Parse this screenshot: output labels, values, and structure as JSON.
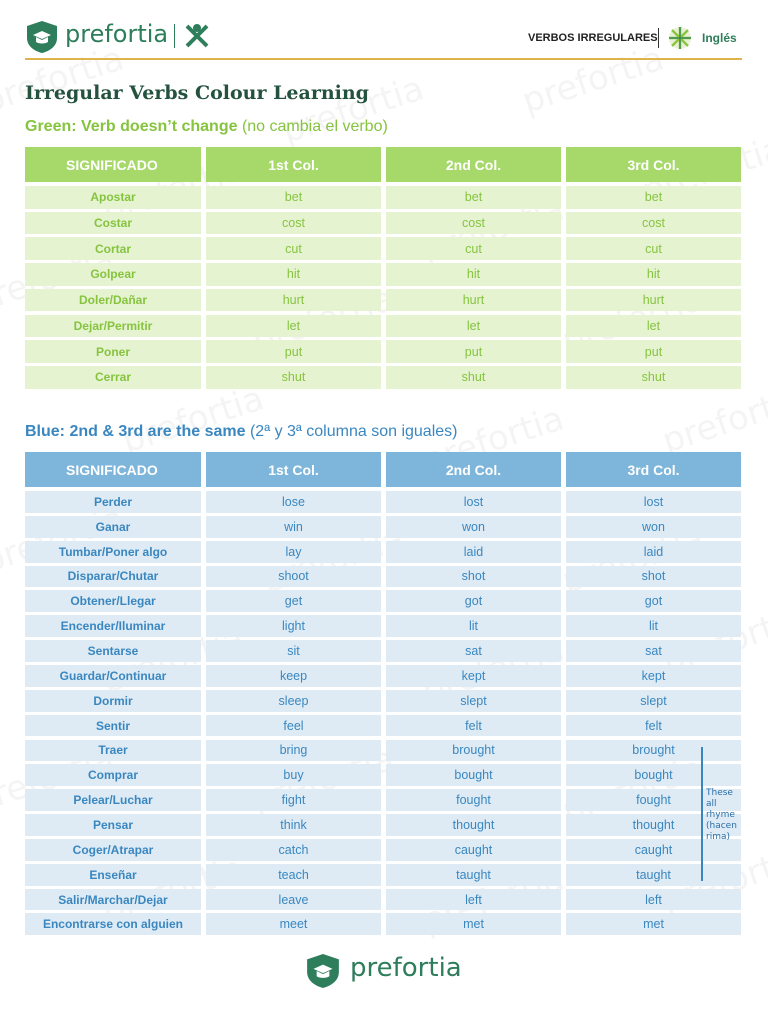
{
  "header": {
    "brand": "prefortia",
    "section": "VERBOS IRREGULARES",
    "language": "Inglés"
  },
  "watermark": "prefortia",
  "title": "Irregular Verbs Colour Learning",
  "tables": [
    {
      "heading": "Green: Verb doesn’t change",
      "heading_note": "(no cambia el verbo)",
      "columns": [
        "SIGNIFICADO",
        "1st Col.",
        "2nd Col.",
        "3rd Col."
      ],
      "rows": [
        [
          "Apostar",
          "bet",
          "bet",
          "bet"
        ],
        [
          "Costar",
          "cost",
          "cost",
          "cost"
        ],
        [
          "Cortar",
          "cut",
          "cut",
          "cut"
        ],
        [
          "Golpear",
          "hit",
          "hit",
          "hit"
        ],
        [
          "Doler/Dañar",
          "hurt",
          "hurt",
          "hurt"
        ],
        [
          "Dejar/Permitir",
          "let",
          "let",
          "let"
        ],
        [
          "Poner",
          "put",
          "put",
          "put"
        ],
        [
          "Cerrar",
          "shut",
          "shut",
          "shut"
        ]
      ]
    },
    {
      "heading": "Blue: 2nd & 3rd are the same",
      "heading_note": "(2ª y 3ª columna son iguales)",
      "columns": [
        "SIGNIFICADO",
        "1st Col.",
        "2nd Col.",
        "3rd Col."
      ],
      "rows": [
        [
          "Perder",
          "lose",
          "lost",
          "lost"
        ],
        [
          "Ganar",
          "win",
          "won",
          "won"
        ],
        [
          "Tumbar/Poner algo",
          "lay",
          "laid",
          "laid"
        ],
        [
          "Disparar/Chutar",
          "shoot",
          "shot",
          "shot"
        ],
        [
          "Obtener/Llegar",
          "get",
          "got",
          "got"
        ],
        [
          "Encender/Iluminar",
          "light",
          "lit",
          "lit"
        ],
        [
          "Sentarse",
          "sit",
          "sat",
          "sat"
        ],
        [
          "Guardar/Continuar",
          "keep",
          "kept",
          "kept"
        ],
        [
          "Dormir",
          "sleep",
          "slept",
          "slept"
        ],
        [
          "Sentir",
          "feel",
          "felt",
          "felt"
        ],
        [
          "Traer",
          "bring",
          "brought",
          "brought"
        ],
        [
          "Comprar",
          "buy",
          "bought",
          "bought"
        ],
        [
          "Pelear/Luchar",
          "fight",
          "fought",
          "fought"
        ],
        [
          "Pensar",
          "think",
          "thought",
          "thought"
        ],
        [
          "Coger/Atrapar",
          "catch",
          "caught",
          "caught"
        ],
        [
          "Enseñar",
          "teach",
          "taught",
          "taught"
        ],
        [
          "Salir/Marchar/Dejar",
          "leave",
          "left",
          "left"
        ],
        [
          "Encontrarse con alguien",
          "meet",
          "met",
          "met"
        ]
      ]
    }
  ],
  "note": "These all rhyme (hacen rima)",
  "footer": {
    "brand": "prefortia"
  }
}
